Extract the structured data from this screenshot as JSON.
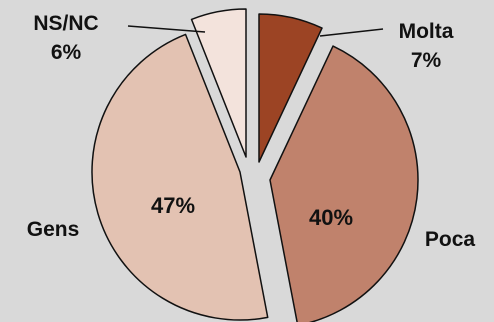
{
  "chart_data": {
    "type": "pie",
    "slices": [
      {
        "label": "Molta",
        "value": 7,
        "value_label": "7%",
        "color": "#9c4424"
      },
      {
        "label": "Poca",
        "value": 40,
        "value_label": "40%",
        "color": "#c0826c"
      },
      {
        "label": "Gens",
        "value": 47,
        "value_label": "47%",
        "color": "#e3c2b2"
      },
      {
        "label": "NS/NC",
        "value": 6,
        "value_label": "6%",
        "color": "#f3e3dc"
      }
    ],
    "start": "top",
    "direction": "clockwise",
    "exploded": true,
    "background": "#d9d9d9",
    "stroke": "#111111"
  }
}
